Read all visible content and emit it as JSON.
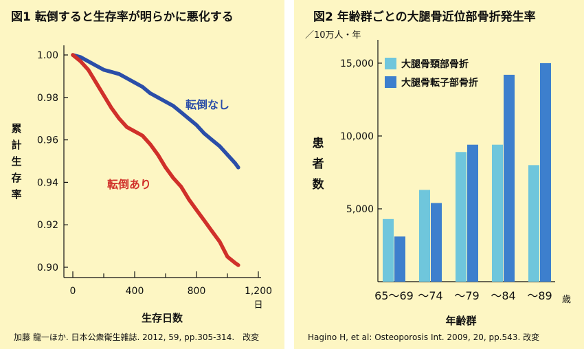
{
  "colors": {
    "background": "#fdf6c3",
    "no_fall": "#2b4ea8",
    "fall": "#d0302a",
    "femoral_neck": "#6fc6dc",
    "trochanteric": "#3d7fcd"
  },
  "chart_data": [
    {
      "type": "line",
      "title": "図1 転倒すると生存率が明らかに悪化する",
      "xlabel": "生存日数",
      "x_unit": "日",
      "ylabel": "累計生存率",
      "xlim": [
        0,
        1200
      ],
      "ylim": [
        0.895,
        1.005
      ],
      "x_ticks": [
        0,
        400,
        800,
        1200
      ],
      "x_tick_labels": [
        "0",
        "400",
        "800",
        "1,200"
      ],
      "y_ticks": [
        1.0,
        0.98,
        0.96,
        0.94,
        0.92,
        0.9
      ],
      "y_tick_labels": [
        "1.00",
        "0.98",
        "0.96",
        "0.94",
        "0.92",
        "0.90"
      ],
      "series": [
        {
          "name": "転倒なし",
          "color_key": "no_fall",
          "x": [
            0,
            50,
            100,
            150,
            200,
            250,
            300,
            350,
            400,
            450,
            500,
            550,
            600,
            650,
            700,
            750,
            800,
            850,
            900,
            950,
            1000,
            1050,
            1070
          ],
          "y": [
            1.0,
            0.999,
            0.997,
            0.995,
            0.993,
            0.992,
            0.991,
            0.989,
            0.987,
            0.985,
            0.982,
            0.98,
            0.978,
            0.976,
            0.973,
            0.97,
            0.967,
            0.963,
            0.96,
            0.957,
            0.953,
            0.949,
            0.947
          ]
        },
        {
          "name": "転倒あり",
          "color_key": "fall",
          "x": [
            0,
            50,
            100,
            150,
            200,
            250,
            300,
            350,
            400,
            450,
            500,
            550,
            600,
            650,
            700,
            750,
            800,
            850,
            900,
            950,
            1000,
            1050,
            1070
          ],
          "y": [
            1.0,
            0.997,
            0.993,
            0.987,
            0.981,
            0.975,
            0.97,
            0.966,
            0.964,
            0.962,
            0.958,
            0.953,
            0.947,
            0.942,
            0.938,
            0.932,
            0.927,
            0.922,
            0.917,
            0.912,
            0.905,
            0.902,
            0.901
          ]
        }
      ],
      "annotations": [
        "転倒なし",
        "転倒あり"
      ]
    },
    {
      "type": "bar",
      "title": "図2 年齢群ごとの大腿骨近位部骨折発生率",
      "unit_label": "／10万人・年",
      "ylabel": "患者数",
      "xlabel": "年齢群",
      "x_unit": "歳",
      "categories": [
        "65〜69",
        "〜74",
        "〜79",
        "〜84",
        "〜89"
      ],
      "ylim": [
        0,
        16600
      ],
      "y_ticks": [
        5000,
        10000,
        15000
      ],
      "y_tick_labels": [
        "5,000",
        "10,000",
        "15,000"
      ],
      "series": [
        {
          "name": "大腿骨頸部骨折",
          "color_key": "femoral_neck",
          "values": [
            4300,
            6300,
            8900,
            9400,
            8000
          ]
        },
        {
          "name": "大腿骨転子部骨折",
          "color_key": "trochanteric",
          "values": [
            3100,
            5400,
            9400,
            14200,
            15000
          ]
        }
      ]
    }
  ],
  "citations": {
    "left": "加藤 龍一ほか. 日本公衆衛生雑誌. 2012, 59, pp.305-314.　改変",
    "right": "Hagino H, et al: Osteoporosis Int. 2009, 20, pp.543. 改変"
  }
}
